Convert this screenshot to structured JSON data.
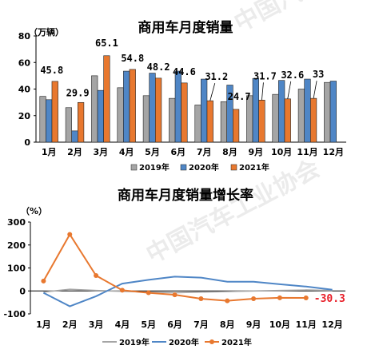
{
  "watermark": "中国汽车工业协会",
  "colors": {
    "s2019": "#a5a5a5",
    "s2020": "#4f86c6",
    "s2021": "#e8782f",
    "last_label": "#e8202a"
  },
  "chart_data": [
    {
      "type": "bar",
      "title": "商用车月度销量",
      "unit": "（万辆）",
      "categories": [
        "1月",
        "2月",
        "3月",
        "4月",
        "5月",
        "6月",
        "7月",
        "8月",
        "9月",
        "10月",
        "11月",
        "12月"
      ],
      "ylim": [
        0,
        80
      ],
      "yticks": [
        0,
        20,
        40,
        60,
        80
      ],
      "series": [
        {
          "name": "2019年",
          "values": [
            34.5,
            26,
            50,
            41,
            35,
            33,
            28,
            30.5,
            35,
            36,
            40,
            45
          ]
        },
        {
          "name": "2020年",
          "values": [
            32,
            8.5,
            39,
            53.5,
            52,
            53.5,
            47.5,
            43,
            48,
            46.5,
            47.5,
            46
          ]
        },
        {
          "name": "2021年",
          "values": [
            45.8,
            29.9,
            65.1,
            54.8,
            48.2,
            44.6,
            31.2,
            24.7,
            31.7,
            32.6,
            33,
            null
          ]
        }
      ],
      "data_labels": [
        "45.8",
        "29.9",
        "65.1",
        "54.8",
        "48.2",
        "44.6",
        "31.2",
        "24.7",
        "31.7",
        "32.6",
        "33",
        ""
      ],
      "legend": "bottom"
    },
    {
      "type": "line",
      "title": "商用车月度销量增长率",
      "unit": "（%）",
      "categories": [
        "1月",
        "2月",
        "3月",
        "4月",
        "5月",
        "6月",
        "7月",
        "8月",
        "9月",
        "10月",
        "11月",
        "12月"
      ],
      "ylim": [
        -100,
        300
      ],
      "yticks": [
        -100,
        0,
        100,
        200,
        300
      ],
      "series": [
        {
          "name": "2019年",
          "values": [
            -5,
            7,
            2,
            -2,
            -5,
            -8,
            -5,
            -3,
            0,
            2,
            4,
            2
          ]
        },
        {
          "name": "2020年",
          "values": [
            -8,
            -67,
            -23,
            32,
            48,
            62,
            58,
            40,
            40,
            29,
            19,
            5
          ]
        },
        {
          "name": "2021年",
          "values": [
            43,
            246,
            67,
            3,
            -8,
            -17,
            -34,
            -43,
            -34,
            -30,
            -30.3,
            null
          ]
        }
      ],
      "last_label": "-30.3",
      "legend": "bottom"
    }
  ]
}
